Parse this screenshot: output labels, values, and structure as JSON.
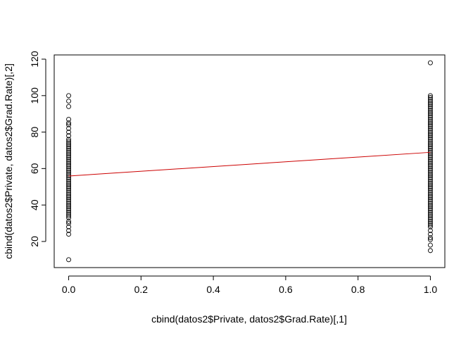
{
  "chart_data": {
    "type": "scatter",
    "title": "",
    "xlabel": "cbind(datos2$Private, datos2$Grad.Rate)[,1]",
    "ylabel": "cbind(datos2$Private, datos2$Grad.Rate)[,2]",
    "xlim": [
      -0.04,
      1.04
    ],
    "ylim": [
      5.68,
      122.32
    ],
    "x_ticks": [
      "0.0",
      "0.2",
      "0.4",
      "0.6",
      "0.8",
      "1.0"
    ],
    "y_ticks": [
      "20",
      "40",
      "60",
      "80",
      "100",
      "120"
    ],
    "grid": false,
    "point_color": "#000000",
    "line_color": "#cc0000",
    "series": [
      {
        "x": 0,
        "values": [
          10,
          24,
          26,
          28,
          30,
          31,
          33,
          34,
          35,
          36,
          37,
          38,
          39,
          40,
          41,
          42,
          43,
          44,
          45,
          46,
          47,
          48,
          49,
          50,
          51,
          52,
          53,
          54,
          55,
          56,
          57,
          58,
          59,
          60,
          61,
          62,
          63,
          64,
          65,
          66,
          67,
          68,
          69,
          70,
          71,
          72,
          73,
          74,
          75,
          76,
          78,
          80,
          82,
          84,
          85,
          87,
          94,
          97,
          100
        ]
      },
      {
        "x": 1,
        "values": [
          15,
          18,
          21,
          22,
          24,
          26,
          28,
          29,
          30,
          31,
          32,
          33,
          34,
          35,
          36,
          37,
          38,
          39,
          40,
          41,
          42,
          43,
          44,
          45,
          46,
          47,
          48,
          49,
          50,
          51,
          52,
          53,
          54,
          55,
          56,
          57,
          58,
          59,
          60,
          61,
          62,
          63,
          64,
          65,
          66,
          67,
          68,
          69,
          70,
          71,
          72,
          73,
          74,
          75,
          76,
          77,
          78,
          79,
          80,
          81,
          82,
          83,
          84,
          85,
          86,
          87,
          88,
          89,
          90,
          91,
          92,
          93,
          94,
          95,
          96,
          97,
          98,
          99,
          100,
          118
        ]
      }
    ],
    "regression_line": {
      "x": [
        0,
        1
      ],
      "y": [
        55.9,
        68.9
      ]
    }
  }
}
